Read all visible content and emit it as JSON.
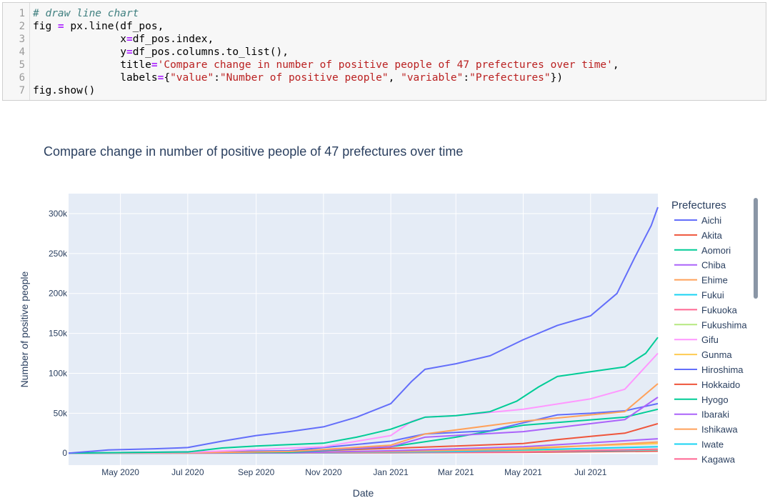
{
  "code_cell": {
    "line_numbers": [
      "1",
      "2",
      "3",
      "4",
      "5",
      "6",
      "7"
    ],
    "lines": [
      [
        {
          "t": "cm",
          "v": "# draw line chart"
        }
      ],
      [
        {
          "t": "",
          "v": "fig "
        },
        {
          "t": "op",
          "v": "="
        },
        {
          "t": "",
          "v": " px.line(df_pos,"
        }
      ],
      [
        {
          "t": "",
          "v": "              x"
        },
        {
          "t": "op",
          "v": "="
        },
        {
          "t": "",
          "v": "df_pos.index,"
        }
      ],
      [
        {
          "t": "",
          "v": "              y"
        },
        {
          "t": "op",
          "v": "="
        },
        {
          "t": "",
          "v": "df_pos.columns.to_list(),"
        }
      ],
      [
        {
          "t": "",
          "v": "              title"
        },
        {
          "t": "op",
          "v": "="
        },
        {
          "t": "str",
          "v": "'Compare change in number of positive people of 47 prefectures over time'"
        },
        {
          "t": "",
          "v": ","
        }
      ],
      [
        {
          "t": "",
          "v": "              labels"
        },
        {
          "t": "op",
          "v": "="
        },
        {
          "t": "",
          "v": "{"
        },
        {
          "t": "str",
          "v": "\"value\""
        },
        {
          "t": "",
          "v": ":"
        },
        {
          "t": "str",
          "v": "\"Number of positive people\""
        },
        {
          "t": "",
          "v": ", "
        },
        {
          "t": "str",
          "v": "\"variable\""
        },
        {
          "t": "",
          "v": ":"
        },
        {
          "t": "str",
          "v": "\"Prefectures\""
        },
        {
          "t": "",
          "v": "})"
        }
      ],
      [
        {
          "t": "",
          "v": "fig.show()"
        }
      ]
    ]
  },
  "chart_data": {
    "type": "line",
    "title": "Compare change in number of positive people of 47 prefectures over time",
    "xlabel": "Date",
    "ylabel": "Number of positive people",
    "x_range": [
      "2020-03-15",
      "2021-08-31"
    ],
    "ylim": [
      -15000,
      325000
    ],
    "x_ticks": [
      {
        "date": "2020-05-01",
        "label": "May 2020"
      },
      {
        "date": "2020-07-01",
        "label": "Jul 2020"
      },
      {
        "date": "2020-09-01",
        "label": "Sep 2020"
      },
      {
        "date": "2020-11-01",
        "label": "Nov 2020"
      },
      {
        "date": "2021-01-01",
        "label": "Jan 2021"
      },
      {
        "date": "2021-03-01",
        "label": "Mar 2021"
      },
      {
        "date": "2021-05-01",
        "label": "May 2021"
      },
      {
        "date": "2021-07-01",
        "label": "Jul 2021"
      }
    ],
    "y_ticks": [
      {
        "value": 0,
        "label": "0"
      },
      {
        "value": 50000,
        "label": "50k"
      },
      {
        "value": 100000,
        "label": "100k"
      },
      {
        "value": 150000,
        "label": "150k"
      },
      {
        "value": 200000,
        "label": "200k"
      },
      {
        "value": 250000,
        "label": "250k"
      },
      {
        "value": 300000,
        "label": "300k"
      }
    ],
    "legend_title": "Prefectures",
    "legend_position": "right",
    "grid": true,
    "series": [
      {
        "name": "Aichi",
        "color": "#636efa",
        "x": [
          "2020-03-15",
          "2020-04-20",
          "2020-06-01",
          "2020-07-01",
          "2020-08-01",
          "2020-09-01",
          "2020-10-01",
          "2020-11-01",
          "2020-12-01",
          "2021-01-01",
          "2021-01-20",
          "2021-02-01",
          "2021-03-01",
          "2021-04-01",
          "2021-05-01",
          "2021-06-01",
          "2021-07-01",
          "2021-07-25",
          "2021-08-10",
          "2021-08-25",
          "2021-08-31"
        ],
        "values": [
          0,
          4000,
          5500,
          7000,
          15000,
          22000,
          27000,
          33000,
          45000,
          62000,
          90000,
          105000,
          112000,
          122000,
          142000,
          160000,
          172000,
          200000,
          245000,
          285000,
          308000
        ]
      },
      {
        "name": "Akita",
        "color": "#ef553b",
        "x": [
          "2020-03-15",
          "2020-07-01",
          "2021-01-01",
          "2021-05-01",
          "2021-08-31"
        ],
        "values": [
          0,
          100,
          500,
          1000,
          2500
        ]
      },
      {
        "name": "Aomori",
        "color": "#00cc96",
        "x": [
          "2020-03-15",
          "2020-07-01",
          "2020-08-01",
          "2020-09-01",
          "2020-11-01",
          "2020-12-01",
          "2021-01-01",
          "2021-02-01",
          "2021-03-01",
          "2021-04-01",
          "2021-04-25",
          "2021-05-15",
          "2021-06-01",
          "2021-07-01",
          "2021-08-01",
          "2021-08-20",
          "2021-08-31"
        ],
        "values": [
          0,
          1500,
          6500,
          9000,
          12500,
          20000,
          30000,
          45000,
          47000,
          52000,
          65000,
          83000,
          96000,
          102000,
          108000,
          125000,
          145000
        ]
      },
      {
        "name": "Chiba",
        "color": "#ab63fa",
        "x": [
          "2020-03-15",
          "2020-07-01",
          "2020-10-01",
          "2021-01-01",
          "2021-02-01",
          "2021-05-01",
          "2021-08-01",
          "2021-08-31"
        ],
        "values": [
          0,
          500,
          2000,
          8000,
          20000,
          27000,
          42000,
          70000
        ]
      },
      {
        "name": "Ehime",
        "color": "#ffa15a",
        "x": [
          "2020-03-15",
          "2020-07-01",
          "2020-10-01",
          "2021-01-01",
          "2021-02-01",
          "2021-05-01",
          "2021-08-01",
          "2021-08-31"
        ],
        "values": [
          0,
          500,
          2000,
          10000,
          24000,
          40000,
          52000,
          87000
        ]
      },
      {
        "name": "Fukui",
        "color": "#19d3f3",
        "x": [
          "2020-03-15",
          "2020-10-01",
          "2021-03-01",
          "2021-08-31"
        ],
        "values": [
          0,
          500,
          2000,
          8000
        ]
      },
      {
        "name": "Fukuoka",
        "color": "#ff6692",
        "x": [
          "2020-03-15",
          "2020-07-01",
          "2021-01-01",
          "2021-05-01",
          "2021-08-31"
        ],
        "values": [
          0,
          200,
          1000,
          2000,
          3500
        ]
      },
      {
        "name": "Fukushima",
        "color": "#b6e880",
        "x": [
          "2020-03-15",
          "2020-09-01",
          "2021-01-01",
          "2021-08-31"
        ],
        "values": [
          0,
          500,
          1500,
          4500
        ]
      },
      {
        "name": "Gifu",
        "color": "#ff97ff",
        "x": [
          "2020-03-15",
          "2020-07-01",
          "2020-11-01",
          "2021-01-01",
          "2021-01-20",
          "2021-02-01",
          "2021-03-01",
          "2021-05-01",
          "2021-07-01",
          "2021-08-01",
          "2021-08-31"
        ],
        "values": [
          0,
          1000,
          8000,
          22000,
          40000,
          45000,
          47000,
          55000,
          68000,
          80000,
          125000
        ]
      },
      {
        "name": "Gunma",
        "color": "#fecb52",
        "x": [
          "2020-03-15",
          "2020-10-01",
          "2021-03-01",
          "2021-08-31"
        ],
        "values": [
          0,
          1000,
          4000,
          12000
        ]
      },
      {
        "name": "Hiroshima",
        "color": "#636efa",
        "x": [
          "2020-03-15",
          "2020-10-01",
          "2021-01-01",
          "2021-02-01",
          "2021-04-01",
          "2021-05-01",
          "2021-06-01",
          "2021-07-01",
          "2021-08-01",
          "2021-08-31"
        ],
        "values": [
          0,
          3000,
          15000,
          24000,
          28000,
          38000,
          48000,
          50000,
          53000,
          62000
        ]
      },
      {
        "name": "Hokkaido",
        "color": "#ef553b",
        "x": [
          "2020-03-15",
          "2020-10-01",
          "2021-01-01",
          "2021-05-01",
          "2021-06-01",
          "2021-07-01",
          "2021-08-01",
          "2021-08-31"
        ],
        "values": [
          0,
          2000,
          6000,
          12000,
          17000,
          21000,
          25000,
          37000
        ]
      },
      {
        "name": "Hyogo",
        "color": "#00cc96",
        "x": [
          "2020-03-15",
          "2020-10-01",
          "2021-01-01",
          "2021-03-01",
          "2021-05-01",
          "2021-08-01",
          "2021-08-31"
        ],
        "values": [
          0,
          1000,
          8000,
          20000,
          35000,
          45000,
          55000
        ]
      },
      {
        "name": "Ibaraki",
        "color": "#ab63fa",
        "x": [
          "2020-03-15",
          "2020-10-01",
          "2021-01-01",
          "2021-05-01",
          "2021-08-31"
        ],
        "values": [
          0,
          500,
          3000,
          8000,
          18000
        ]
      },
      {
        "name": "Ishikawa",
        "color": "#ffa15a",
        "x": [
          "2020-03-15",
          "2020-10-01",
          "2021-01-01",
          "2021-05-01",
          "2021-08-31"
        ],
        "values": [
          0,
          500,
          2000,
          5000,
          14000
        ]
      },
      {
        "name": "Iwate",
        "color": "#19d3f3",
        "x": [
          "2020-03-15",
          "2020-10-01",
          "2021-05-01",
          "2021-08-31"
        ],
        "values": [
          0,
          100,
          1500,
          4000
        ]
      },
      {
        "name": "Kagawa",
        "color": "#ff6692",
        "x": [
          "2020-03-15",
          "2020-10-01",
          "2021-05-01",
          "2021-08-31"
        ],
        "values": [
          0,
          200,
          1500,
          5000
        ]
      }
    ]
  }
}
